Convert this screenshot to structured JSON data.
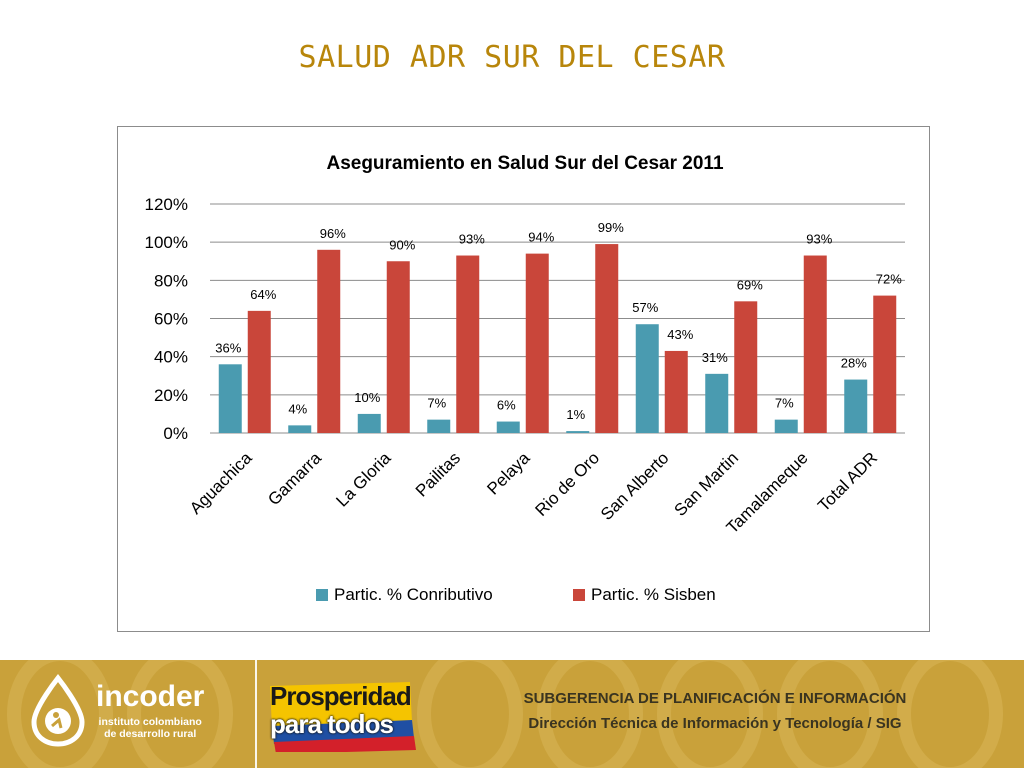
{
  "slide": {
    "title": "SALUD ADR SUR DEL CESAR"
  },
  "chart_data": {
    "type": "bar",
    "title": "Aseguramiento en Salud Sur del Cesar 2011",
    "categories": [
      "Aguachica",
      "Gamarra",
      "La Gloria",
      "Pailitas",
      "Pelaya",
      "Rio de Oro",
      "San Alberto",
      "San Martin",
      "Tamalameque",
      "Total ADR"
    ],
    "series": [
      {
        "name": "Partic. % Conributivo",
        "color": "#4a9bb0",
        "values": [
          36,
          4,
          10,
          7,
          6,
          1,
          57,
          31,
          7,
          28
        ],
        "labels": [
          "36%",
          "4%",
          "10%",
          "7%",
          "6%",
          "1%",
          "57%",
          "31%",
          "7%",
          "28%"
        ]
      },
      {
        "name": "Partic. % Sisben",
        "color": "#c9463a",
        "values": [
          64,
          96,
          90,
          93,
          94,
          99,
          43,
          69,
          93,
          72
        ],
        "labels": [
          "64%",
          "96%",
          "90%",
          "93%",
          "94%",
          "99%",
          "43%",
          "69%",
          "93%",
          "72%"
        ]
      }
    ],
    "ylim": [
      0,
      120
    ],
    "yticks": [
      "0%",
      "20%",
      "40%",
      "60%",
      "80%",
      "100%",
      "120%"
    ],
    "grid": true,
    "legend_position": "bottom"
  },
  "footer": {
    "logo_name": "incoder",
    "logo_sub_line1": "instituto colombiano",
    "logo_sub_line2": "de desarrollo rural",
    "slogan_line1": "Prosperidad",
    "slogan_line2": "para todos",
    "line1": "SUBGERENCIA DE PLANIFICACIÓN E INFORMACIÓN",
    "line2": "Dirección Técnica de Información y Tecnología / SIG",
    "colors": {
      "background": "#c9a13a",
      "flag_yellow": "#f5c400",
      "flag_blue": "#1f4fa3",
      "flag_red": "#d3202a"
    }
  }
}
